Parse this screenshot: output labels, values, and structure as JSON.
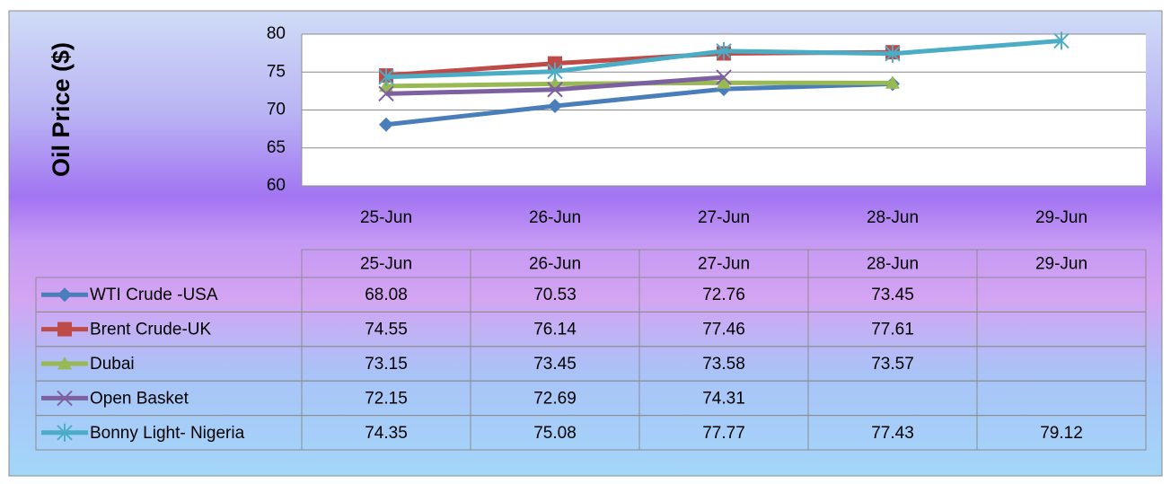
{
  "chart_data": {
    "type": "line",
    "y_label": "Oil Price ($)",
    "categories": [
      "25-Jun",
      "26-Jun",
      "27-Jun",
      "28-Jun",
      "29-Jun"
    ],
    "series": [
      {
        "name": "WTI Crude -USA",
        "color": "#4a7ebb",
        "marker": "diamond",
        "values": [
          68.08,
          70.53,
          72.76,
          73.45,
          null
        ]
      },
      {
        "name": "Brent Crude-UK",
        "color": "#be4b48",
        "marker": "square",
        "values": [
          74.55,
          76.14,
          77.46,
          77.61,
          null
        ]
      },
      {
        "name": "Dubai",
        "color": "#98b954",
        "marker": "triangle",
        "values": [
          73.15,
          73.45,
          73.58,
          73.57,
          null
        ]
      },
      {
        "name": "Open Basket",
        "color": "#7d60a0",
        "marker": "x",
        "values": [
          72.15,
          72.69,
          74.31,
          null,
          null
        ]
      },
      {
        "name": "Bonny Light- Nigeria",
        "color": "#4bacc6",
        "marker": "star",
        "values": [
          74.35,
          75.08,
          77.77,
          77.43,
          79.12
        ]
      }
    ],
    "ylim": [
      60,
      80
    ],
    "yticks": [
      60,
      65,
      70,
      75,
      80
    ],
    "grid": true,
    "legend": "table"
  }
}
